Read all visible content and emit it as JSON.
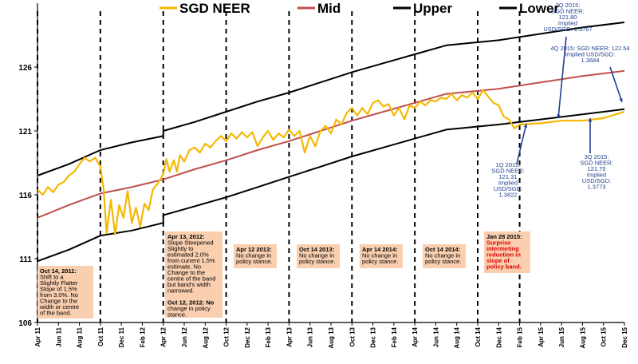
{
  "chart_data": {
    "type": "line",
    "title": "",
    "xlabel": "",
    "ylabel": "",
    "ylim": [
      106,
      131
    ],
    "yticks": [
      106,
      111,
      116,
      121,
      126
    ],
    "x_ticks": [
      "Apr 11",
      "Jun 11",
      "Aug 11",
      "Oct 11",
      "Dec 11",
      "Feb 12",
      "Apr 12",
      "Jun 12",
      "Aug 12",
      "Oct 12",
      "Dec 12",
      "Feb 13",
      "Apr 13",
      "Jun 13",
      "Aug 13",
      "Oct 13",
      "Dec 13",
      "Feb 14",
      "Apr 14",
      "Jun 14",
      "Aug 14",
      "Oct 14",
      "Dec 14",
      "Feb 15",
      "Apr 15",
      "Jun 15",
      "Aug 15",
      "Oct 15",
      "Dec 15"
    ],
    "legend": [
      {
        "name": "SGD NEER",
        "color": "#f5b800"
      },
      {
        "name": "Mid",
        "color": "#c0504d"
      },
      {
        "name": "Upper",
        "color": "#000000"
      },
      {
        "name": "Lower",
        "color": "#000000"
      }
    ],
    "series": [
      {
        "name": "Mid",
        "color": "#c0504d",
        "points": [
          [
            0,
            114.2
          ],
          [
            3,
            115.2
          ],
          [
            6,
            116.1
          ],
          [
            9,
            116.6
          ],
          [
            12,
            117.2
          ],
          [
            15,
            118.0
          ],
          [
            18,
            118.7
          ],
          [
            21,
            119.5
          ],
          [
            24,
            120.2
          ],
          [
            27,
            121.0
          ],
          [
            30,
            121.8
          ],
          [
            33,
            122.5
          ],
          [
            36,
            123.2
          ],
          [
            39,
            123.9
          ],
          [
            44,
            124.3
          ],
          [
            48,
            124.8
          ],
          [
            52,
            125.3
          ],
          [
            56,
            125.7
          ]
        ]
      },
      {
        "name": "Upper",
        "color": "#000000",
        "points": [
          [
            0,
            117.5
          ],
          [
            3,
            118.4
          ],
          [
            6,
            119.5
          ],
          [
            9,
            120.1
          ],
          [
            12,
            120.6
          ],
          [
            12.01,
            121.0
          ],
          [
            15,
            121.7
          ],
          [
            18,
            122.5
          ],
          [
            21,
            123.3
          ],
          [
            24,
            124.0
          ],
          [
            27,
            124.8
          ],
          [
            30,
            125.6
          ],
          [
            33,
            126.3
          ],
          [
            36,
            127.0
          ],
          [
            39,
            127.7
          ],
          [
            44,
            128.1
          ],
          [
            48,
            128.6
          ],
          [
            52,
            129.1
          ],
          [
            56,
            129.5
          ]
        ]
      },
      {
        "name": "Lower",
        "color": "#000000",
        "points": [
          [
            0,
            110.8
          ],
          [
            3,
            111.7
          ],
          [
            6,
            112.8
          ],
          [
            9,
            113.2
          ],
          [
            12,
            113.8
          ],
          [
            12.01,
            114.4
          ],
          [
            15,
            115.1
          ],
          [
            18,
            115.8
          ],
          [
            21,
            116.6
          ],
          [
            24,
            117.4
          ],
          [
            27,
            118.2
          ],
          [
            30,
            119.0
          ],
          [
            33,
            119.7
          ],
          [
            36,
            120.4
          ],
          [
            39,
            121.1
          ],
          [
            44,
            121.5
          ],
          [
            48,
            121.9
          ],
          [
            52,
            122.3
          ],
          [
            56,
            122.7
          ]
        ]
      },
      {
        "name": "SGD NEER",
        "color": "#f5b800",
        "points": [
          [
            0,
            116.4
          ],
          [
            0.5,
            116.0
          ],
          [
            1,
            116.6
          ],
          [
            1.5,
            116.2
          ],
          [
            2,
            116.8
          ],
          [
            2.5,
            117.0
          ],
          [
            3,
            117.5
          ],
          [
            3.5,
            117.8
          ],
          [
            4,
            118.4
          ],
          [
            4.5,
            118.9
          ],
          [
            5,
            118.6
          ],
          [
            5.5,
            118.9
          ],
          [
            6,
            118.2
          ],
          [
            6.3,
            116.5
          ],
          [
            6.6,
            113.0
          ],
          [
            7,
            115.6
          ],
          [
            7.4,
            112.9
          ],
          [
            7.8,
            115.2
          ],
          [
            8.2,
            114.2
          ],
          [
            8.6,
            116.3
          ],
          [
            9,
            113.8
          ],
          [
            9.4,
            115.0
          ],
          [
            9.8,
            113.5
          ],
          [
            10.2,
            115.3
          ],
          [
            10.6,
            114.8
          ],
          [
            11,
            116.4
          ],
          [
            11.5,
            116.9
          ],
          [
            12,
            117.6
          ],
          [
            12.3,
            118.8
          ],
          [
            12.6,
            117.8
          ],
          [
            13,
            118.7
          ],
          [
            13.3,
            117.8
          ],
          [
            13.6,
            119.1
          ],
          [
            14,
            118.6
          ],
          [
            14.5,
            119.5
          ],
          [
            15,
            119.7
          ],
          [
            15.5,
            119.3
          ],
          [
            16,
            120.0
          ],
          [
            16.5,
            119.7
          ],
          [
            17,
            120.2
          ],
          [
            17.5,
            120.6
          ],
          [
            18,
            120.2
          ],
          [
            18.5,
            120.8
          ],
          [
            19,
            120.4
          ],
          [
            19.5,
            120.9
          ],
          [
            20,
            120.5
          ],
          [
            20.5,
            120.9
          ],
          [
            21,
            119.8
          ],
          [
            21.5,
            120.5
          ],
          [
            22,
            121.0
          ],
          [
            22.5,
            120.3
          ],
          [
            23,
            120.8
          ],
          [
            23.5,
            120.5
          ],
          [
            24,
            121.1
          ],
          [
            24.5,
            120.6
          ],
          [
            25,
            121.0
          ],
          [
            25.5,
            119.3
          ],
          [
            26,
            120.6
          ],
          [
            26.5,
            119.8
          ],
          [
            27,
            121.0
          ],
          [
            27.5,
            121.4
          ],
          [
            28,
            120.8
          ],
          [
            28.5,
            121.9
          ],
          [
            29,
            121.5
          ],
          [
            29.5,
            122.4
          ],
          [
            30,
            122.8
          ],
          [
            30.5,
            122.2
          ],
          [
            31,
            122.8
          ],
          [
            31.5,
            122.3
          ],
          [
            32,
            123.2
          ],
          [
            32.5,
            123.4
          ],
          [
            33,
            122.9
          ],
          [
            33.5,
            123.1
          ],
          [
            34,
            122.2
          ],
          [
            34.5,
            122.8
          ],
          [
            35,
            121.9
          ],
          [
            35.5,
            123.0
          ],
          [
            36,
            122.8
          ],
          [
            36.5,
            123.3
          ],
          [
            37,
            123.0
          ],
          [
            37.5,
            123.4
          ],
          [
            38,
            123.3
          ],
          [
            38.5,
            123.6
          ],
          [
            39,
            123.5
          ],
          [
            39.5,
            123.9
          ],
          [
            40,
            123.4
          ],
          [
            40.5,
            123.8
          ],
          [
            41,
            123.6
          ],
          [
            41.5,
            124.0
          ],
          [
            42,
            123.5
          ],
          [
            42.5,
            124.2
          ],
          [
            43,
            123.7
          ],
          [
            43.5,
            123.2
          ],
          [
            44,
            123.0
          ],
          [
            44.5,
            122.1
          ],
          [
            45,
            121.9
          ],
          [
            45.5,
            121.2
          ],
          [
            46,
            121.5
          ],
          [
            48,
            121.6
          ],
          [
            50,
            121.8
          ],
          [
            52,
            121.8
          ],
          [
            54,
            122.0
          ],
          [
            56,
            122.5
          ]
        ]
      }
    ],
    "vertical_lines": [
      0,
      6,
      12,
      18,
      24,
      30,
      36,
      42,
      46
    ],
    "annotations": [
      {
        "lines": [
          "Oct 14, 2011:",
          "Shift to a",
          "Slightly Flatter",
          "Slope of 1.5%",
          "from 3.0%. No",
          "Change to the",
          "width or centre",
          "of the band."
        ]
      },
      {
        "lines": [
          "Apr 13, 2012:",
          "Slope Steepened",
          "Slightly to",
          "estimated 2.0%",
          "from current 1.5%",
          "estimate.  No",
          "Change to the",
          "centre of the band",
          "but band's width",
          "narrowed.",
          "",
          "Oct 12, 2012: No",
          "change in policy",
          "stance."
        ]
      },
      {
        "lines": [
          "Apr 12 2013:",
          "No change in",
          "policy stance."
        ]
      },
      {
        "lines": [
          "Oct 14 2013:",
          "No change in",
          "policy stance."
        ]
      },
      {
        "lines": [
          "Apr 14 2014:",
          "No change in",
          "policy stance."
        ]
      },
      {
        "lines": [
          "Oct 14 2014:",
          "No change in",
          "policy stance."
        ]
      },
      {
        "lines": [
          "Jan 28 2015:",
          "Surprise",
          "intermeting",
          "reduction in",
          "slope of",
          "policy band."
        ]
      }
    ],
    "callouts": [
      {
        "lines": [
          "1Q 2015:",
          "SGD NEER:",
          "121.31",
          "Implied",
          "USD/SGD:",
          "1.3822"
        ]
      },
      {
        "lines": [
          "2Q 2015:",
          "SGD NEER:",
          "121.80",
          "Implied",
          "USD/SGD: 1.3767"
        ]
      },
      {
        "lines": [
          "4Q 2015: SGD NEER: 122.54",
          "Implied  USD/SGD:",
          "1.3684"
        ]
      },
      {
        "lines": [
          "3Q 2015:",
          "SGD NEER:",
          "121.75",
          "Implied",
          "USD/SGD:",
          "1.3773"
        ]
      }
    ]
  }
}
